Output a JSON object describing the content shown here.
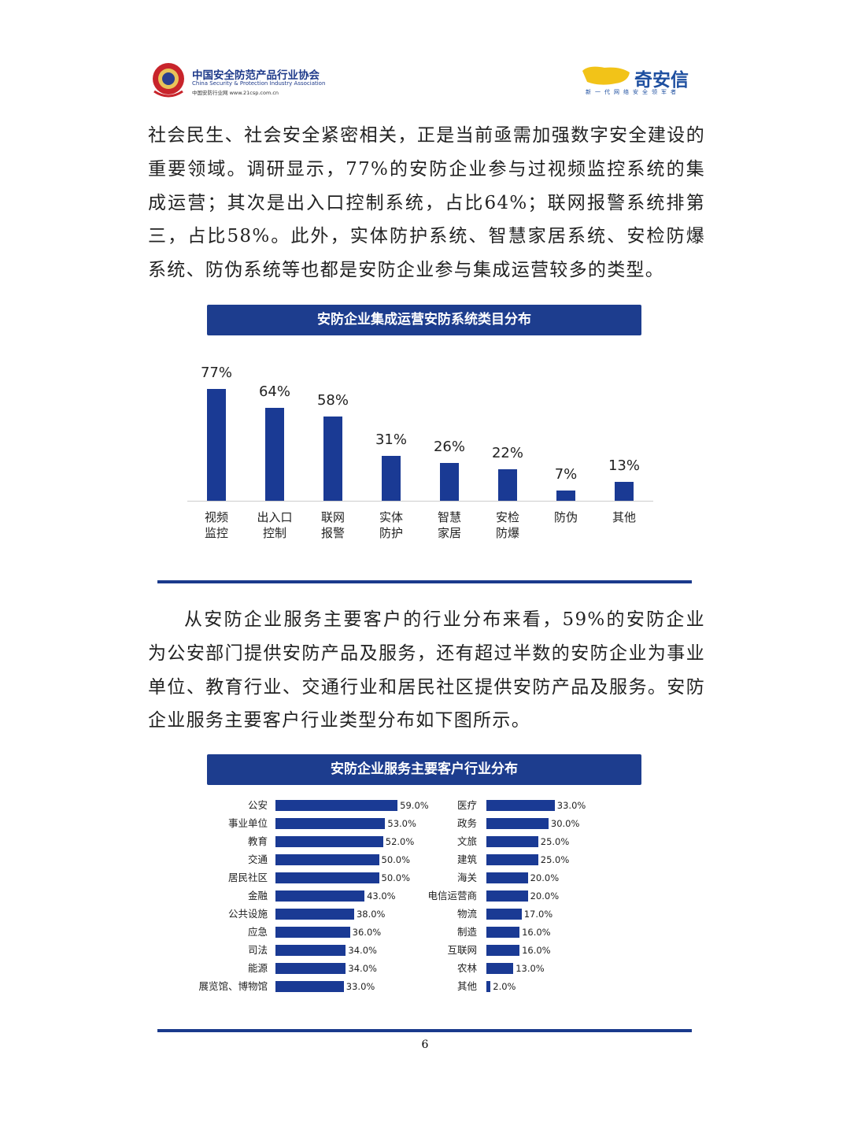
{
  "header": {
    "org_cn": "中国安全防范产品行业协会",
    "org_en": "China Security & Protection Industry Association",
    "org_site": "中国安防行业网 www.21csp.com.cn",
    "brand": "奇安信",
    "slogan": "新一代网络安全领军者"
  },
  "paragraphs": [
    "社会民生、社会安全紧密相关，正是当前亟需加强数字安全建设的重要领域。调研显示，77%的安防企业参与过视频监控系统的集成运营；其次是出入口控制系统，占比64%；联网报警系统排第三，占比58%。此外，实体防护系统、智慧家居系统、安检防爆系统、防伪系统等也都是安防企业参与集成运营较多的类型。",
    "从安防企业服务主要客户的行业分布来看，59%的安防企业为公安部门提供安防产品及服务，还有超过半数的安防企业为事业单位、教育行业、交通行业和居民社区提供安防产品及服务。安防企业服务主要客户行业类型分布如下图所示。"
  ],
  "chart_data": [
    {
      "type": "bar",
      "title": "安防企业集成运营安防系统类目分布",
      "categories": [
        "视频\n监控",
        "出入口\n控制",
        "联网\n报警",
        "实体\n防护",
        "智慧\n家居",
        "安检\n防爆",
        "防伪",
        "其他"
      ],
      "values": [
        77,
        64,
        58,
        31,
        26,
        22,
        7,
        13
      ],
      "value_labels": [
        "77%",
        "64%",
        "58%",
        "31%",
        "26%",
        "22%",
        "7%",
        "13%"
      ],
      "color": "#1a3a94"
    },
    {
      "type": "hbar",
      "title": "安防企业服务主要客户行业分布",
      "color": "#1a3a94",
      "groups": [
        {
          "categories": [
            "公安",
            "事业单位",
            "教育",
            "交通",
            "居民社区",
            "金融",
            "公共设施",
            "应急",
            "司法",
            "能源",
            "展览馆、博物馆"
          ],
          "values": [
            59,
            53,
            52,
            50,
            50,
            43,
            38,
            36,
            34,
            34,
            33
          ],
          "value_labels": [
            "59.0%",
            "53.0%",
            "52.0%",
            "50.0%",
            "50.0%",
            "43.0%",
            "38.0%",
            "36.0%",
            "34.0%",
            "34.0%",
            "33.0%"
          ]
        },
        {
          "categories": [
            "医疗",
            "政务",
            "文旅",
            "建筑",
            "海关",
            "电信运营商",
            "物流",
            "制造",
            "互联网",
            "农林",
            "其他"
          ],
          "values": [
            33,
            30,
            25,
            25,
            20,
            20,
            17,
            16,
            16,
            13,
            2
          ],
          "value_labels": [
            "33.0%",
            "30.0%",
            "25.0%",
            "25.0%",
            "20.0%",
            "20.0%",
            "17.0%",
            "16.0%",
            "16.0%",
            "13.0%",
            "2.0%"
          ]
        }
      ]
    }
  ],
  "page_number": "6"
}
